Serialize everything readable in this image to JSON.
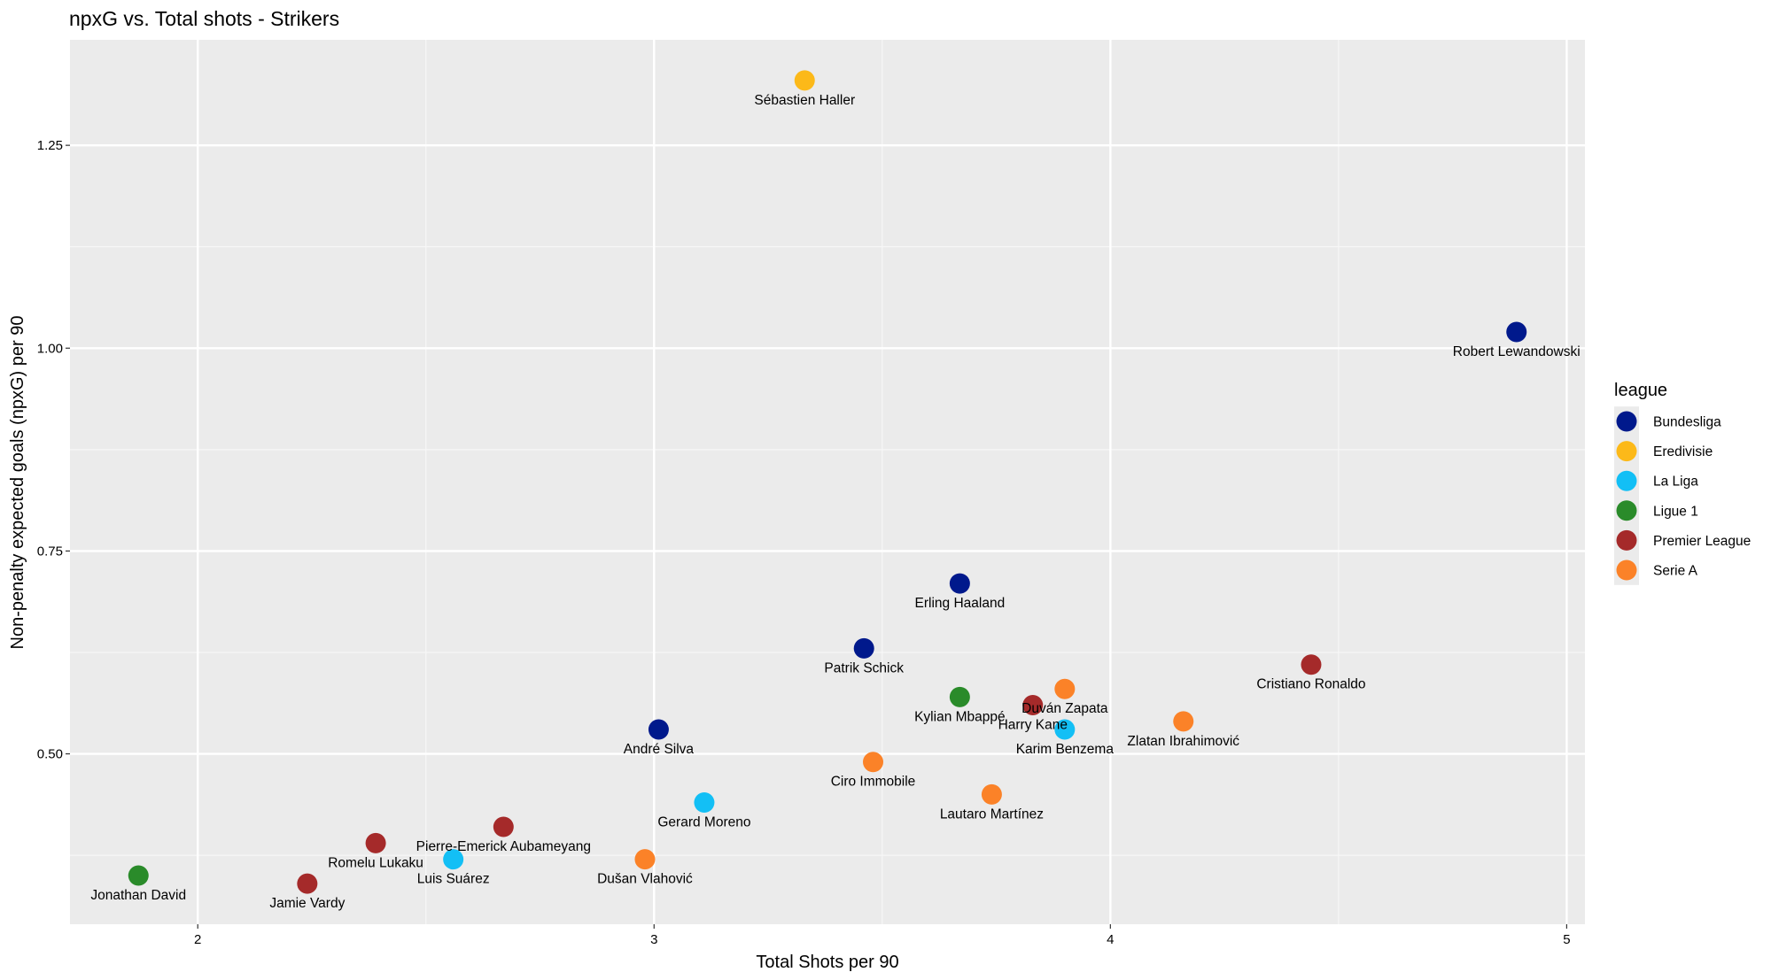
{
  "chart_data": {
    "type": "scatter",
    "title": "npxG vs. Total shots - Strikers",
    "x_label": "Total Shots per 90",
    "y_label": "Non-penalty expected goals (npxG) per 90",
    "legend_title": "league",
    "legend": "right",
    "grid": true,
    "xlim": [
      1.72,
      5.04
    ],
    "xticks": [
      2,
      3,
      4,
      5
    ],
    "ylim": [
      0.29,
      1.38
    ],
    "yticks": [
      {
        "value": 0.5,
        "label": "0.50"
      },
      {
        "value": 0.75,
        "label": "0.75"
      },
      {
        "value": 1.0,
        "label": "1.00"
      },
      {
        "value": 1.25,
        "label": "1.25"
      }
    ],
    "series": [
      {
        "name": "Bundesliga",
        "color": "#00198c",
        "x": [
          4.89,
          3.67,
          3.46,
          3.01
        ],
        "values": [
          1.02,
          0.71,
          0.63,
          0.53
        ],
        "labels": [
          "Robert Lewandowski",
          "Erling Haaland",
          "Patrik Schick",
          "André Silva"
        ]
      },
      {
        "name": "Eredivisie",
        "color": "#fcb919",
        "x": [
          3.33
        ],
        "values": [
          1.33
        ],
        "labels": [
          "Sébastien Haller"
        ]
      },
      {
        "name": "La Liga",
        "color": "#13bff5",
        "x": [
          3.9,
          3.11,
          2.56
        ],
        "values": [
          0.53,
          0.44,
          0.37
        ],
        "labels": [
          "Karim Benzema",
          "Gerard Moreno",
          "Luis Suárez"
        ]
      },
      {
        "name": "Ligue 1",
        "color": "#2a8b2a",
        "x": [
          3.67,
          1.87
        ],
        "values": [
          0.57,
          0.35
        ],
        "labels": [
          "Kylian Mbappé",
          "Jonathan David"
        ]
      },
      {
        "name": "Premier League",
        "color": "#a52a2a",
        "x": [
          4.44,
          3.83,
          2.67,
          2.39,
          2.24
        ],
        "values": [
          0.61,
          0.56,
          0.41,
          0.39,
          0.34
        ],
        "labels": [
          "Cristiano Ronaldo",
          "Harry Kane",
          "Pierre-Emerick Aubameyang",
          "Romelu Lukaku",
          "Jamie Vardy"
        ]
      },
      {
        "name": "Serie A",
        "color": "#fb8228",
        "x": [
          3.9,
          4.16,
          3.48,
          3.74,
          2.98
        ],
        "values": [
          0.58,
          0.54,
          0.49,
          0.45,
          0.37
        ],
        "labels": [
          "Duván Zapata",
          "Zlatan Ibrahimović",
          "Ciro Immobile",
          "Lautaro Martínez",
          "Dušan Vlahović"
        ]
      }
    ]
  }
}
